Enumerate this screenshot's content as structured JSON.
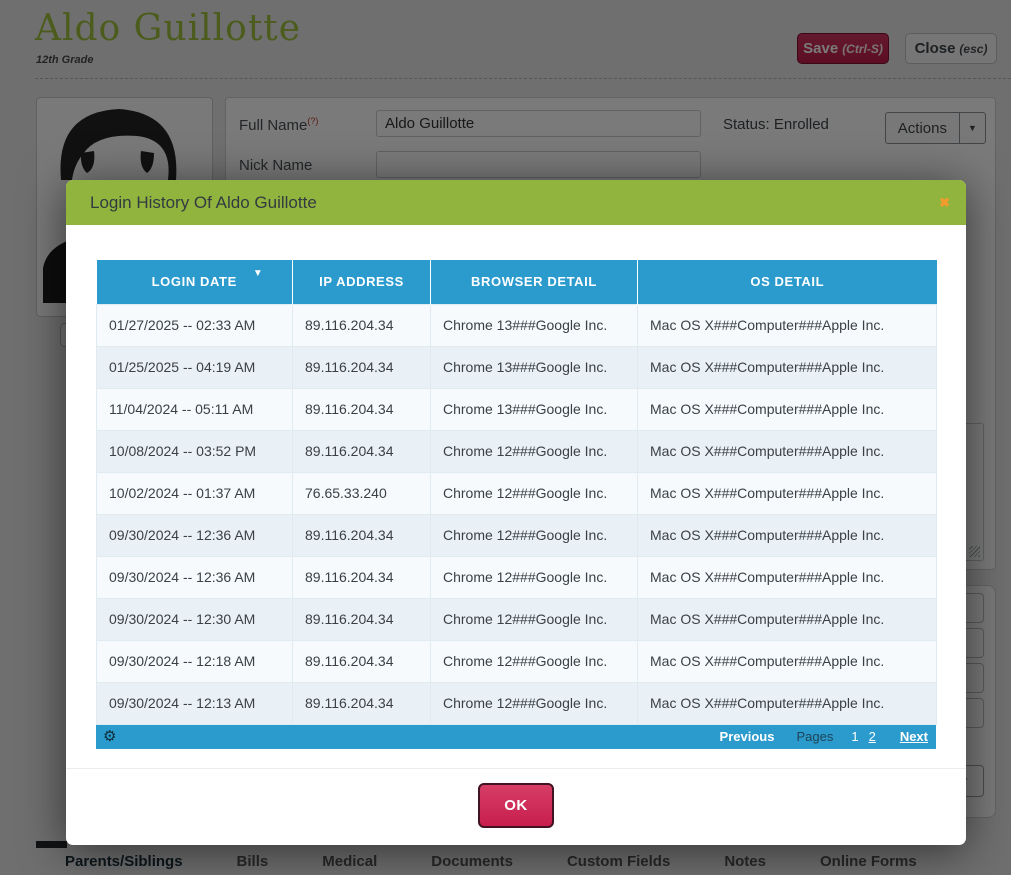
{
  "page": {
    "title": "Aldo Guillotte",
    "subtitle": "12th Grade",
    "save_label": "Save",
    "save_hint": "(Ctrl-S)",
    "close_label": "Close",
    "close_hint": "(esc)",
    "form": {
      "full_name_label": "Full Name",
      "required_hint": "(?)",
      "full_name_value": "Aldo Guillotte",
      "nick_name_label": "Nick Name",
      "nick_name_value": "",
      "status_text": "Status: Enrolled",
      "actions_label": "Actions"
    },
    "tabs": [
      {
        "label": "Parents/Siblings",
        "active": true
      },
      {
        "label": "Bills",
        "active": false
      },
      {
        "label": "Medical",
        "active": false
      },
      {
        "label": "Documents",
        "active": false
      },
      {
        "label": "Custom Fields",
        "active": false
      },
      {
        "label": "Notes",
        "active": false
      },
      {
        "label": "Online Forms",
        "active": false
      }
    ]
  },
  "modal": {
    "title": "Login History Of Aldo Guillotte",
    "table": {
      "columns": [
        "LOGIN DATE",
        "IP ADDRESS",
        "BROWSER DETAIL",
        "OS DETAIL"
      ],
      "sorted_column": "LOGIN DATE",
      "rows": [
        {
          "login_date": "01/27/2025 -- 02:33 AM",
          "ip": "89.116.204.34",
          "browser": "Chrome 13###Google Inc.",
          "os": "Mac OS X###Computer###Apple Inc."
        },
        {
          "login_date": "01/25/2025 -- 04:19 AM",
          "ip": "89.116.204.34",
          "browser": "Chrome 13###Google Inc.",
          "os": "Mac OS X###Computer###Apple Inc."
        },
        {
          "login_date": "11/04/2024 -- 05:11 AM",
          "ip": "89.116.204.34",
          "browser": "Chrome 13###Google Inc.",
          "os": "Mac OS X###Computer###Apple Inc."
        },
        {
          "login_date": "10/08/2024 -- 03:52 PM",
          "ip": "89.116.204.34",
          "browser": "Chrome 12###Google Inc.",
          "os": "Mac OS X###Computer###Apple Inc."
        },
        {
          "login_date": "10/02/2024 -- 01:37 AM",
          "ip": "76.65.33.240",
          "browser": "Chrome 12###Google Inc.",
          "os": "Mac OS X###Computer###Apple Inc."
        },
        {
          "login_date": "09/30/2024 -- 12:36 AM",
          "ip": "89.116.204.34",
          "browser": "Chrome 12###Google Inc.",
          "os": "Mac OS X###Computer###Apple Inc."
        },
        {
          "login_date": "09/30/2024 -- 12:36 AM",
          "ip": "89.116.204.34",
          "browser": "Chrome 12###Google Inc.",
          "os": "Mac OS X###Computer###Apple Inc."
        },
        {
          "login_date": "09/30/2024 -- 12:30 AM",
          "ip": "89.116.204.34",
          "browser": "Chrome 12###Google Inc.",
          "os": "Mac OS X###Computer###Apple Inc."
        },
        {
          "login_date": "09/30/2024 -- 12:18 AM",
          "ip": "89.116.204.34",
          "browser": "Chrome 12###Google Inc.",
          "os": "Mac OS X###Computer###Apple Inc."
        },
        {
          "login_date": "09/30/2024 -- 12:13 AM",
          "ip": "89.116.204.34",
          "browser": "Chrome 12###Google Inc.",
          "os": "Mac OS X###Computer###Apple Inc."
        }
      ]
    },
    "pagination": {
      "previous_label": "Previous",
      "pages_label": "Pages",
      "pages": [
        {
          "label": "1",
          "current": true
        },
        {
          "label": "2",
          "current": false
        }
      ],
      "next_label": "Next"
    },
    "ok_label": "OK"
  },
  "icons": {
    "sort_desc": "▼",
    "modal_close": "✖",
    "gear": "⚙",
    "dropdown_arrow": "▼"
  },
  "colors": {
    "accent_green": "#90b43e",
    "title_green": "#9fc13c",
    "table_blue": "#2b9bcd",
    "crimson": "#c81e4e",
    "close_orange": "#f39b2b"
  }
}
